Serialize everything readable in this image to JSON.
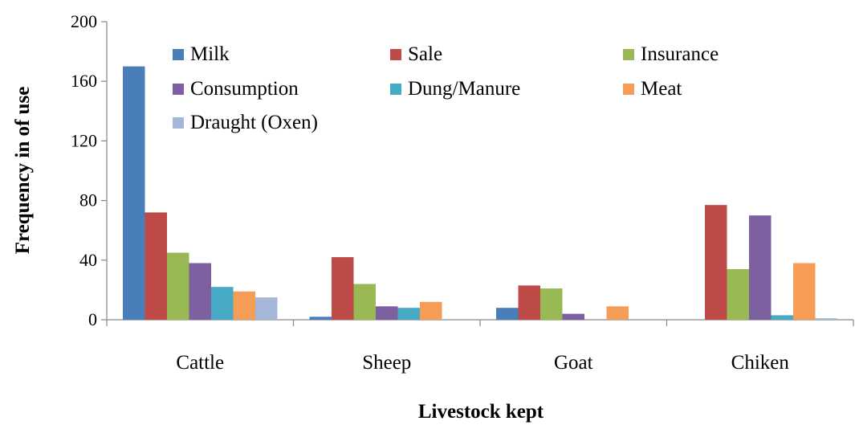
{
  "chart_data": {
    "type": "bar",
    "title": "",
    "xlabel": "Livestock kept",
    "ylabel": "Frequency in of use",
    "categories": [
      "Cattle",
      "Sheep",
      "Goat",
      "Chiken"
    ],
    "ylim": [
      0,
      200
    ],
    "yticks": [
      0,
      40,
      80,
      120,
      160,
      200
    ],
    "grid": false,
    "legend_position": "top",
    "series": [
      {
        "name": "Milk",
        "color": "#4a7ebb",
        "values": [
          170,
          2,
          8,
          0
        ]
      },
      {
        "name": "Sale",
        "color": "#be4b48",
        "values": [
          72,
          42,
          23,
          77
        ]
      },
      {
        "name": "Insurance",
        "color": "#98b954",
        "values": [
          45,
          24,
          21,
          34
        ]
      },
      {
        "name": "Consumption",
        "color": "#7d60a0",
        "values": [
          38,
          9,
          4,
          70
        ]
      },
      {
        "name": "Dung/Manure",
        "color": "#46aac5",
        "values": [
          22,
          8,
          0,
          3
        ]
      },
      {
        "name": "Meat",
        "color": "#f59d56",
        "values": [
          19,
          12,
          9,
          38
        ]
      },
      {
        "name": "Draught (Oxen)",
        "color": "#a5b6d9",
        "values": [
          15,
          0,
          0,
          1
        ]
      }
    ]
  }
}
